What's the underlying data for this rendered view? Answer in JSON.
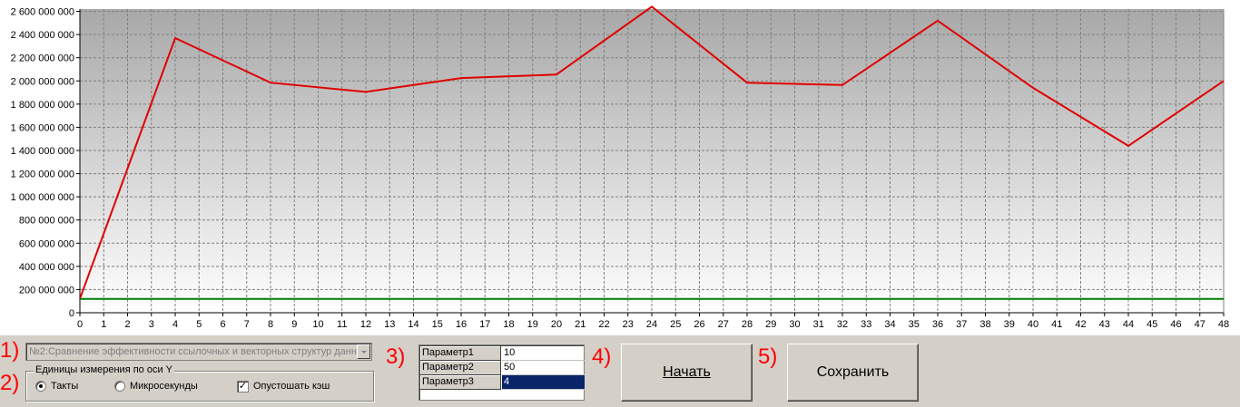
{
  "chart_data": {
    "type": "line",
    "x": [
      0,
      4,
      8,
      12,
      16,
      20,
      24,
      28,
      32,
      36,
      40,
      44,
      48
    ],
    "series": [
      {
        "name": "red",
        "color": "#e00000",
        "values": [
          120000000,
          2370000000,
          1985000000,
          1905000000,
          2025000000,
          2055000000,
          2640000000,
          1985000000,
          1965000000,
          2520000000,
          1940000000,
          1440000000,
          2000000000
        ]
      },
      {
        "name": "green",
        "color": "#008000",
        "values": [
          120000000,
          120000000,
          120000000,
          120000000,
          120000000,
          120000000,
          120000000,
          120000000,
          120000000,
          120000000,
          120000000,
          120000000,
          120000000
        ]
      }
    ],
    "xlim": [
      0,
      48
    ],
    "ylim": [
      0,
      2620000000
    ],
    "yticks": [
      "0",
      "200 000 000",
      "400 000 000",
      "600 000 000",
      "800 000 000",
      "1 000 000 000",
      "1 200 000 000",
      "1 400 000 000",
      "1 600 000 000",
      "1 800 000 000",
      "2 000 000 000",
      "2 200 000 000",
      "2 400 000 000",
      "2 600 000 000"
    ],
    "xticks": [
      "0",
      "1",
      "2",
      "3",
      "4",
      "5",
      "6",
      "7",
      "8",
      "9",
      "10",
      "11",
      "12",
      "13",
      "14",
      "15",
      "16",
      "17",
      "18",
      "19",
      "20",
      "21",
      "22",
      "23",
      "24",
      "25",
      "26",
      "27",
      "28",
      "29",
      "30",
      "31",
      "32",
      "33",
      "34",
      "35",
      "36",
      "37",
      "38",
      "39",
      "40",
      "41",
      "42",
      "43",
      "44",
      "45",
      "46",
      "47",
      "48"
    ],
    "grid": true
  },
  "labels": {
    "n1": "1)",
    "n2": "2)",
    "n3": "3)",
    "n4": "4)",
    "n5": "5)"
  },
  "combo": {
    "value": "№2:Сравнение эффективности ссылочных и векторных структур данн"
  },
  "units": {
    "legend": "Единицы измерения по оси Y",
    "ticks": "Такты",
    "micro": "Микросекунды",
    "flush": "Опустошать кэш"
  },
  "params": [
    {
      "name": "Параметр1",
      "value": "10"
    },
    {
      "name": "Параметр2",
      "value": "50"
    },
    {
      "name": "Параметр3",
      "value": "4"
    }
  ],
  "buttons": {
    "start": "Начать",
    "save": "Сохранить"
  },
  "colors": {
    "background": "#d4d0c8",
    "line": "#e00000",
    "baseline": "#008000",
    "selection": "#0a246a"
  }
}
